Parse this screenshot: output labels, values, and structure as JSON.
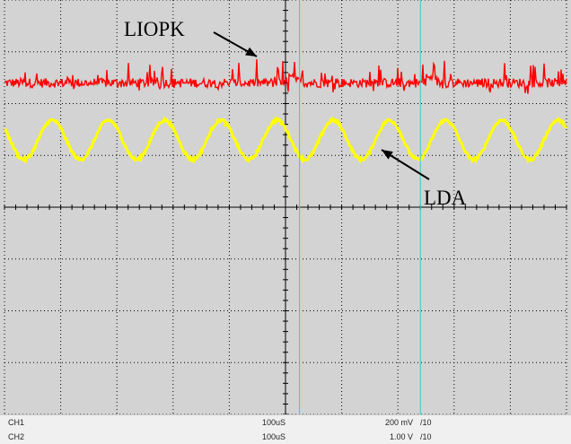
{
  "chart_data": {
    "type": "line",
    "grid": true,
    "divisions": {
      "x": 10,
      "y": 8
    },
    "series": [
      {
        "channel": "CH1",
        "color": "#ff0000",
        "level_div": 6.4,
        "noise_div": 0.18,
        "step_times_div": [
          5.05,
          7.5
        ],
        "step_div": 0.12
      },
      {
        "channel": "CH2",
        "color": "#ffff00",
        "level_div": 5.3,
        "amplitude_div": 0.38,
        "cycles": 10
      }
    ],
    "cursors": {
      "color": "#33cccc",
      "x_div": [
        5.25,
        7.4
      ]
    },
    "annotations": [
      {
        "text": "LIOPK",
        "target": "CH1"
      },
      {
        "text": "LDA",
        "target": "CH2"
      }
    ],
    "background": "#d3d3d3"
  },
  "status": {
    "rows": [
      {
        "channel": "CH1",
        "timebase": "100uS",
        "volts": "200 mV",
        "per_div": "/10"
      },
      {
        "channel": "CH2",
        "timebase": "100uS",
        "volts": "1.00 V",
        "per_div": "/10"
      }
    ]
  }
}
